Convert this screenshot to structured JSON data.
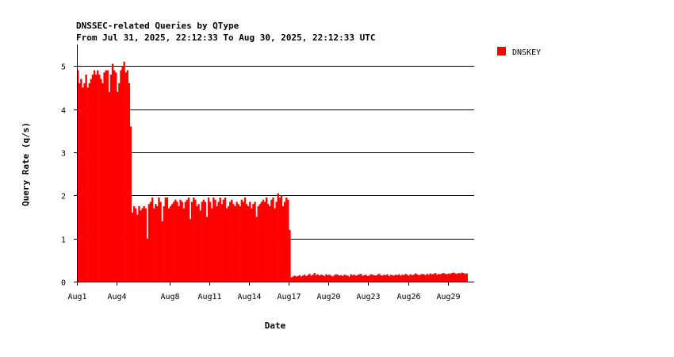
{
  "chart_data": {
    "type": "bar",
    "title": "DNSSEC-related Queries by QType",
    "subtitle": "From Jul 31, 2025, 22:12:33 To Aug 30, 2025, 22:12:33 UTC",
    "xlabel": "Date",
    "ylabel": "Query Rate (q/s)",
    "ylim": [
      0,
      5.5
    ],
    "yticks": [
      0,
      1,
      2,
      3,
      4,
      5
    ],
    "xlim": [
      0,
      30
    ],
    "grid": true,
    "legend_position": "top-right",
    "xticks": [
      {
        "pos": 0,
        "label": "Aug1"
      },
      {
        "pos": 3,
        "label": "Aug4"
      },
      {
        "pos": 7,
        "label": "Aug8"
      },
      {
        "pos": 10,
        "label": "Aug11"
      },
      {
        "pos": 13,
        "label": "Aug14"
      },
      {
        "pos": 16,
        "label": "Aug17"
      },
      {
        "pos": 19,
        "label": "Aug20"
      },
      {
        "pos": 22,
        "label": "Aug23"
      },
      {
        "pos": 25,
        "label": "Aug26"
      },
      {
        "pos": 28,
        "label": "Aug29"
      }
    ],
    "series": [
      {
        "name": "DNSKEY",
        "color": "#ff0000",
        "bin_width_days": 0.125,
        "values": [
          4.9,
          4.6,
          4.7,
          4.5,
          4.6,
          4.8,
          4.5,
          4.6,
          4.7,
          4.8,
          4.9,
          4.8,
          4.9,
          4.8,
          4.7,
          4.6,
          4.85,
          4.9,
          4.9,
          4.4,
          4.8,
          5.05,
          4.9,
          4.85,
          4.4,
          4.6,
          4.9,
          5.0,
          5.1,
          4.85,
          4.9,
          4.6,
          3.6,
          1.6,
          1.75,
          1.7,
          1.55,
          1.75,
          1.65,
          1.7,
          1.75,
          1.7,
          1.0,
          1.8,
          1.85,
          1.95,
          1.7,
          1.8,
          1.75,
          1.95,
          1.85,
          1.4,
          1.75,
          1.95,
          1.95,
          1.7,
          1.75,
          1.8,
          1.85,
          1.9,
          1.85,
          1.75,
          1.9,
          1.85,
          1.7,
          1.85,
          1.9,
          1.95,
          1.45,
          1.85,
          1.95,
          1.9,
          1.75,
          1.8,
          1.65,
          1.85,
          1.9,
          1.85,
          1.5,
          1.95,
          1.85,
          1.7,
          1.95,
          1.9,
          1.75,
          1.85,
          1.95,
          1.8,
          1.9,
          1.95,
          1.7,
          1.75,
          1.85,
          1.9,
          1.8,
          1.75,
          1.85,
          1.8,
          1.75,
          1.9,
          1.85,
          1.95,
          1.8,
          1.75,
          1.85,
          1.7,
          1.8,
          1.85,
          1.5,
          1.75,
          1.8,
          1.85,
          1.9,
          1.85,
          1.95,
          1.8,
          1.75,
          1.9,
          1.95,
          1.7,
          1.85,
          2.05,
          1.95,
          2.0,
          1.75,
          1.85,
          1.95,
          1.9,
          1.2,
          0.1,
          0.12,
          0.14,
          0.12,
          0.13,
          0.15,
          0.12,
          0.14,
          0.16,
          0.13,
          0.15,
          0.18,
          0.14,
          0.16,
          0.2,
          0.15,
          0.17,
          0.14,
          0.16,
          0.15,
          0.13,
          0.17,
          0.15,
          0.16,
          0.14,
          0.12,
          0.15,
          0.17,
          0.16,
          0.14,
          0.15,
          0.13,
          0.16,
          0.15,
          0.14,
          0.12,
          0.17,
          0.15,
          0.16,
          0.14,
          0.15,
          0.17,
          0.18,
          0.14,
          0.15,
          0.16,
          0.13,
          0.14,
          0.17,
          0.16,
          0.15,
          0.14,
          0.16,
          0.18,
          0.15,
          0.14,
          0.16,
          0.15,
          0.17,
          0.13,
          0.16,
          0.15,
          0.14,
          0.16,
          0.15,
          0.17,
          0.14,
          0.16,
          0.15,
          0.18,
          0.16,
          0.14,
          0.17,
          0.15,
          0.16,
          0.19,
          0.17,
          0.15,
          0.16,
          0.18,
          0.17,
          0.15,
          0.18,
          0.16,
          0.19,
          0.17,
          0.18,
          0.2,
          0.16,
          0.18,
          0.17,
          0.19,
          0.2,
          0.18,
          0.17,
          0.19,
          0.18,
          0.2,
          0.21,
          0.19,
          0.18,
          0.2,
          0.19,
          0.21,
          0.2,
          0.18,
          0.19
        ]
      }
    ]
  }
}
